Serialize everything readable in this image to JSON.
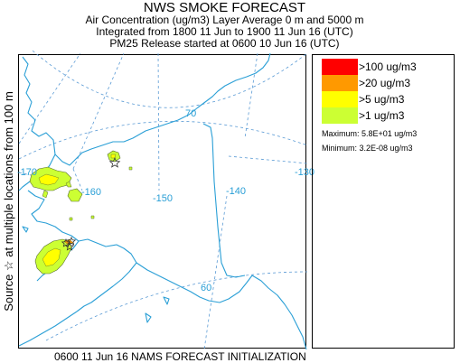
{
  "header": {
    "title": "NWS SMOKE FORECAST",
    "line1": "Air Concentration (ug/m3) Layer Average    0 m and  5000 m",
    "line2": "Integrated from 1800 11 Jun to 1900 11 Jun 16 (UTC)",
    "line3": "PM25 Release started at 0600 10 Jun 16 (UTC)"
  },
  "side_label": "Source ☆ at multiple locations   from  100 m",
  "map": {
    "longitude_labels": [
      "-170",
      "-160",
      "-150",
      "-140",
      "-130"
    ],
    "latitude_labels": [
      "70",
      "60"
    ],
    "coast_color": "#2a9fd6",
    "grid_color": "#5b9bd5",
    "source_marker": "star-icon"
  },
  "legend": {
    "items": [
      {
        "label": ">100 ug/m3",
        "color": "#ff0000"
      },
      {
        "label": ">20 ug/m3",
        "color": "#ff9900"
      },
      {
        "label": ">5 ug/m3",
        "color": "#ffff00"
      },
      {
        "label": ">1 ug/m3",
        "color": "#ccff33"
      }
    ],
    "maximum": "Maximum: 5.8E+01 ug/m3",
    "minimum": "Minimum: 3.2E-08 ug/m3"
  },
  "footer": "0600 11 Jun 16 NAMS FORECAST INITIALIZATION"
}
